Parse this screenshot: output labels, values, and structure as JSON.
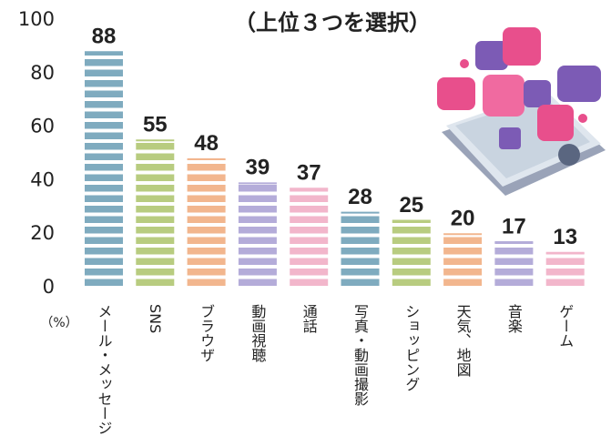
{
  "chart_data": {
    "type": "bar",
    "title": "（上位３つを選択）",
    "y_unit": "（%）",
    "categories": [
      "メール・メッセージ",
      "SNS",
      "ブラウザ",
      "動画視聴",
      "通話",
      "写真・動画撮影",
      "ショッピング",
      "天気、地図",
      "音楽",
      "ゲーム"
    ],
    "values": [
      88,
      55,
      48,
      39,
      37,
      28,
      25,
      20,
      17,
      13
    ],
    "colors": [
      "#7fabbf",
      "#b8cc80",
      "#f2b68e",
      "#b4acd9",
      "#f2b6cb",
      "#7fabbf",
      "#b8cc80",
      "#f2b68e",
      "#b4acd9",
      "#f2b6cb"
    ],
    "ylim": [
      0,
      100
    ],
    "yticks": [
      0,
      20,
      40,
      60,
      80,
      100
    ]
  }
}
